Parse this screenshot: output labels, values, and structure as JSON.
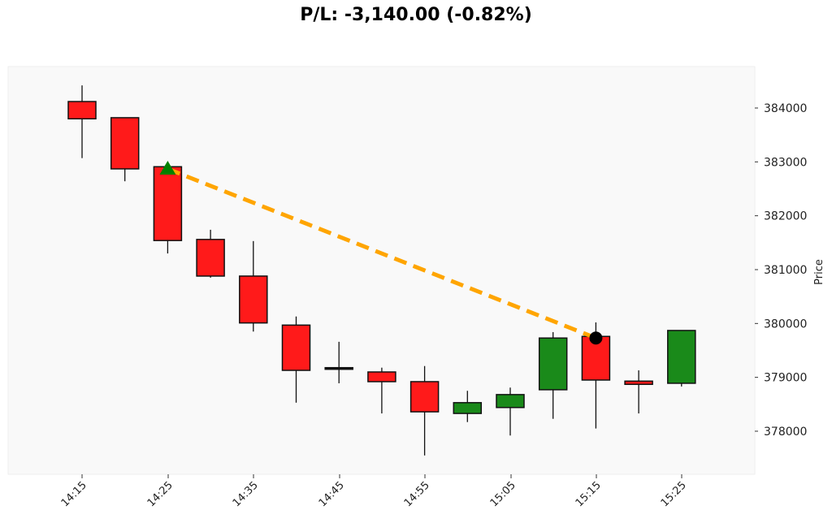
{
  "title": "P/L: -3,140.00 (-0.82%)",
  "colors": {
    "up": "#1a8a1a",
    "down": "#ff1a1a",
    "trade_line": "#ffa500",
    "entry_marker": "#008000",
    "exit_marker": "#000000",
    "plot_bg": "#f9f9f9"
  },
  "chart_data": {
    "type": "candlestick",
    "title": "P/L: -3,140.00 (-0.82%)",
    "xlabel": "",
    "ylabel": "Price",
    "ylim": [
      377300,
      384750
    ],
    "grid": false,
    "y_axis_position": "right",
    "x_tick_labels": [
      "14:15",
      "14:25",
      "14:35",
      "14:45",
      "14:55",
      "15:05",
      "15:15",
      "15:25"
    ],
    "y_tick_labels": [
      "378000",
      "379000",
      "380000",
      "381000",
      "382000",
      "383000",
      "384000"
    ],
    "y_ticks": [
      378000,
      379000,
      380000,
      381000,
      382000,
      383000,
      384000
    ],
    "candles": [
      {
        "time": "14:15",
        "open": 384120,
        "high": 384420,
        "low": 383070,
        "close": 383800
      },
      {
        "time": "14:20",
        "open": 383820,
        "high": 383820,
        "low": 382640,
        "close": 382870
      },
      {
        "time": "14:25",
        "open": 382910,
        "high": 382910,
        "low": 381300,
        "close": 381540
      },
      {
        "time": "14:30",
        "open": 381560,
        "high": 381740,
        "low": 380850,
        "close": 380880
      },
      {
        "time": "14:35",
        "open": 380880,
        "high": 381530,
        "low": 379850,
        "close": 380010
      },
      {
        "time": "14:40",
        "open": 379970,
        "high": 380130,
        "low": 378530,
        "close": 379130
      },
      {
        "time": "14:45",
        "open": 379180,
        "high": 379660,
        "low": 378890,
        "close": 379180
      },
      {
        "time": "14:50",
        "open": 379100,
        "high": 379180,
        "low": 378330,
        "close": 378920
      },
      {
        "time": "14:55",
        "open": 378920,
        "high": 379210,
        "low": 377550,
        "close": 378360
      },
      {
        "time": "15:00",
        "open": 378330,
        "high": 378750,
        "low": 378170,
        "close": 378530
      },
      {
        "time": "15:05",
        "open": 378440,
        "high": 378810,
        "low": 377920,
        "close": 378680
      },
      {
        "time": "15:10",
        "open": 378770,
        "high": 379840,
        "low": 378230,
        "close": 379730
      },
      {
        "time": "15:15",
        "open": 379760,
        "high": 380020,
        "low": 378050,
        "close": 378950
      },
      {
        "time": "15:20",
        "open": 378930,
        "high": 379130,
        "low": 378330,
        "close": 378870
      },
      {
        "time": "15:25",
        "open": 378890,
        "high": 379870,
        "low": 378830,
        "close": 379870
      }
    ],
    "trade": {
      "entry": {
        "time": "14:25",
        "price": 382870,
        "marker": "triangle-up"
      },
      "exit": {
        "time": "15:15",
        "price": 379730,
        "marker": "circle"
      },
      "line_style": "dashed"
    }
  }
}
